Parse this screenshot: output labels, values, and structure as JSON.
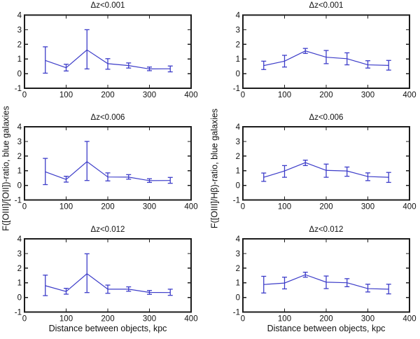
{
  "figure": {
    "background": "#ffffff",
    "axis_color": "#1c1c1c",
    "line_color": "#3d3dc9",
    "xlabel": "Distance between objects, kpc",
    "ylabel_left": "F([OIII]/[OII])-ratio, blue galaxies",
    "ylabel_right": "F([OIII]/Hβ)-ratio, blue galaxies"
  },
  "chart_data": [
    {
      "id": "oiii-oii-dz001",
      "type": "line",
      "col": 0,
      "row": 0,
      "title": "Δz<0.001",
      "ylabel": "F([OIII]/[OII])-ratio, blue galaxies",
      "xlabel": "Distance between objects, kpc",
      "xlim": [
        0,
        400
      ],
      "ylim": [
        -1,
        4
      ],
      "xticks": [
        0,
        100,
        200,
        300,
        400
      ],
      "yticks": [
        -1,
        0,
        1,
        2,
        3,
        4
      ],
      "x": [
        50,
        100,
        150,
        200,
        250,
        300,
        350
      ],
      "y": [
        0.9,
        0.4,
        1.62,
        0.68,
        0.55,
        0.32,
        0.33
      ],
      "y_low": [
        0.03,
        0.18,
        0.32,
        0.3,
        0.38,
        0.2,
        0.12
      ],
      "y_high": [
        1.83,
        0.64,
        3.0,
        1.02,
        0.73,
        0.45,
        0.52
      ]
    },
    {
      "id": "oiii-hb-dz001",
      "type": "line",
      "col": 1,
      "row": 0,
      "title": "Δz<0.001",
      "ylabel": "F([OIII]/Hβ)-ratio, blue galaxies",
      "xlabel": "Distance between objects, kpc",
      "xlim": [
        0,
        400
      ],
      "ylim": [
        -1,
        4
      ],
      "xticks": [
        0,
        100,
        200,
        300,
        400
      ],
      "yticks": [
        -1,
        0,
        1,
        2,
        3,
        4
      ],
      "x": [
        50,
        100,
        150,
        200,
        250,
        300,
        350
      ],
      "y": [
        0.55,
        0.85,
        1.55,
        1.12,
        1.02,
        0.6,
        0.56
      ],
      "y_low": [
        0.28,
        0.45,
        1.38,
        0.68,
        0.6,
        0.38,
        0.24
      ],
      "y_high": [
        0.85,
        1.25,
        1.72,
        1.58,
        1.42,
        0.88,
        0.9
      ]
    },
    {
      "id": "oiii-oii-dz006",
      "type": "line",
      "col": 0,
      "row": 1,
      "title": "Δz<0.006",
      "ylabel": "F([OIII]/[OII])-ratio, blue galaxies",
      "xlabel": "Distance between objects, kpc",
      "xlim": [
        0,
        400
      ],
      "ylim": [
        -1,
        4
      ],
      "xticks": [
        0,
        100,
        200,
        300,
        400
      ],
      "yticks": [
        -1,
        0,
        1,
        2,
        3,
        4
      ],
      "x": [
        50,
        100,
        150,
        200,
        250,
        300,
        350
      ],
      "y": [
        0.92,
        0.4,
        1.62,
        0.57,
        0.56,
        0.32,
        0.33
      ],
      "y_low": [
        0.05,
        0.22,
        0.33,
        0.3,
        0.42,
        0.2,
        0.14
      ],
      "y_high": [
        1.84,
        0.62,
        3.0,
        0.85,
        0.73,
        0.45,
        0.54
      ]
    },
    {
      "id": "oiii-hb-dz006",
      "type": "line",
      "col": 1,
      "row": 1,
      "title": "Δz<0.006",
      "ylabel": "F([OIII]/Hβ)-ratio, blue galaxies",
      "xlabel": "Distance between objects, kpc",
      "xlim": [
        0,
        400
      ],
      "ylim": [
        -1,
        4
      ],
      "xticks": [
        0,
        100,
        200,
        300,
        400
      ],
      "yticks": [
        -1,
        0,
        1,
        2,
        3,
        4
      ],
      "x": [
        50,
        100,
        150,
        200,
        250,
        300,
        350
      ],
      "y": [
        0.55,
        0.98,
        1.55,
        1.02,
        0.98,
        0.6,
        0.55
      ],
      "y_low": [
        0.27,
        0.55,
        1.35,
        0.55,
        0.62,
        0.32,
        0.2
      ],
      "y_high": [
        0.84,
        1.35,
        1.72,
        1.45,
        1.25,
        0.85,
        0.88
      ]
    },
    {
      "id": "oiii-oii-dz012",
      "type": "line",
      "col": 0,
      "row": 2,
      "title": "Δz<0.012",
      "ylabel": "F([OIII]/[OII])-ratio, blue galaxies",
      "xlabel": "Distance between objects, kpc",
      "xlim": [
        0,
        400
      ],
      "ylim": [
        -1,
        4
      ],
      "xticks": [
        0,
        100,
        200,
        300,
        400
      ],
      "yticks": [
        -1,
        0,
        1,
        2,
        3,
        4
      ],
      "x": [
        50,
        100,
        150,
        200,
        250,
        300,
        350
      ],
      "y": [
        0.8,
        0.4,
        1.62,
        0.56,
        0.56,
        0.34,
        0.33
      ],
      "y_low": [
        0.12,
        0.22,
        0.33,
        0.28,
        0.42,
        0.21,
        0.14
      ],
      "y_high": [
        1.52,
        0.62,
        2.98,
        0.84,
        0.72,
        0.47,
        0.56
      ]
    },
    {
      "id": "oiii-hb-dz012",
      "type": "line",
      "col": 1,
      "row": 2,
      "title": "Δz<0.012",
      "ylabel": "F([OIII]/Hβ)-ratio, blue galaxies",
      "xlabel": "Distance between objects, kpc",
      "xlim": [
        0,
        400
      ],
      "ylim": [
        -1,
        4
      ],
      "xticks": [
        0,
        100,
        200,
        300,
        400
      ],
      "yticks": [
        -1,
        0,
        1,
        2,
        3,
        4
      ],
      "x": [
        50,
        100,
        150,
        200,
        250,
        300,
        350
      ],
      "y": [
        0.88,
        0.98,
        1.55,
        1.04,
        1.0,
        0.6,
        0.56
      ],
      "y_low": [
        0.3,
        0.58,
        1.38,
        0.6,
        0.73,
        0.37,
        0.24
      ],
      "y_high": [
        1.44,
        1.38,
        1.72,
        1.46,
        1.28,
        0.9,
        0.9
      ]
    }
  ]
}
